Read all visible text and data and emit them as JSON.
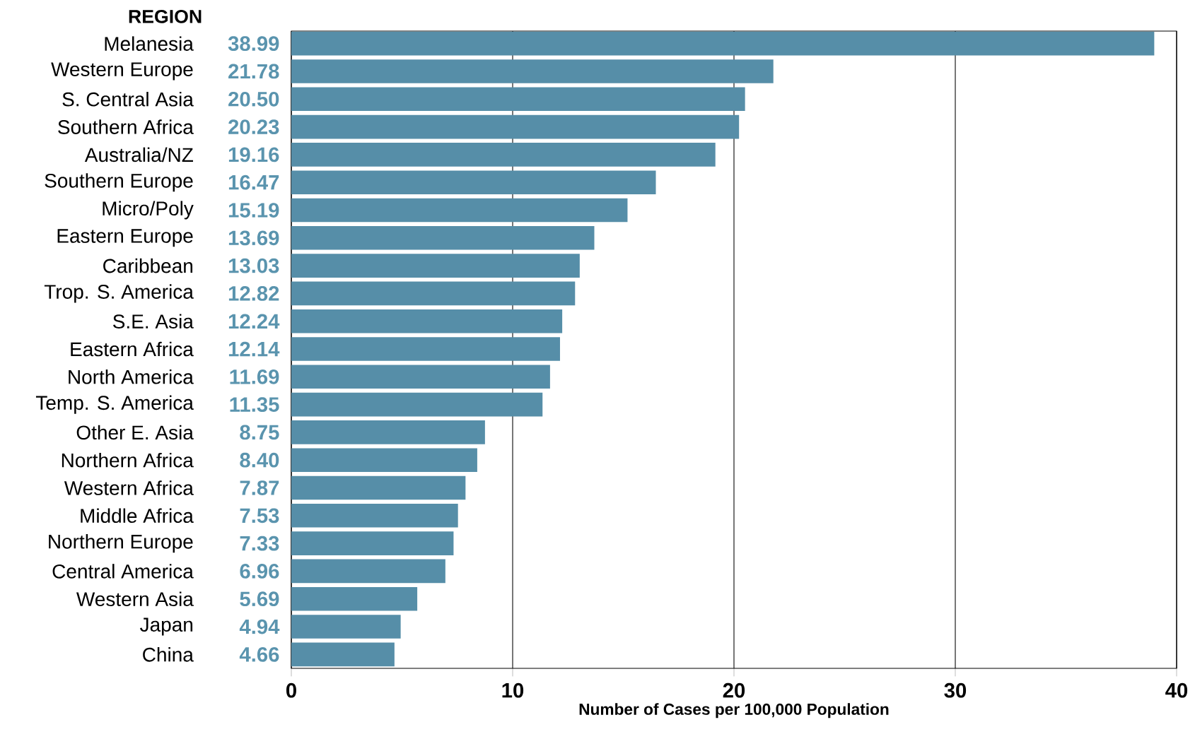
{
  "chart_data": {
    "type": "bar",
    "orientation": "horizontal",
    "ylabel": "REGION",
    "xlabel": "Number of Cases per 100,000 Population",
    "categories": [
      "Melanesia",
      "Western Europe",
      "S. Central Asia",
      "Southern Africa",
      "Australia/NZ",
      "Southern Europe",
      "Micro/Poly",
      "Eastern Europe",
      "Caribbean",
      "Trop. S. America",
      "S.E. Asia",
      "Eastern Africa",
      "North America",
      "Temp. S. America",
      "Other E. Asia",
      "Northern Africa",
      "Western Africa",
      "Middle Africa",
      "Northern Europe",
      "Central America",
      "Western Asia",
      "Japan",
      "China"
    ],
    "values": [
      38.99,
      21.78,
      20.5,
      20.23,
      19.16,
      16.47,
      15.19,
      13.69,
      13.03,
      12.82,
      12.24,
      12.14,
      11.69,
      11.35,
      8.75,
      8.4,
      7.87,
      7.53,
      7.33,
      6.96,
      5.69,
      4.94,
      4.66
    ],
    "value_labels": [
      "38.99",
      "21.78",
      "20.50",
      "20.23",
      "19.16",
      "16.47",
      "15.19",
      "13.69",
      "13.03",
      "12.82",
      "12.24",
      "12.14",
      "11.69",
      "11.35",
      "8.75",
      "8.40",
      "7.87",
      "7.53",
      "7.33",
      "6.96",
      "5.69",
      "4.94",
      "4.66"
    ],
    "color": "#568ea8",
    "xlim": [
      0,
      40
    ],
    "xticks": [
      0,
      10,
      20,
      30,
      40
    ],
    "grid": "x"
  }
}
